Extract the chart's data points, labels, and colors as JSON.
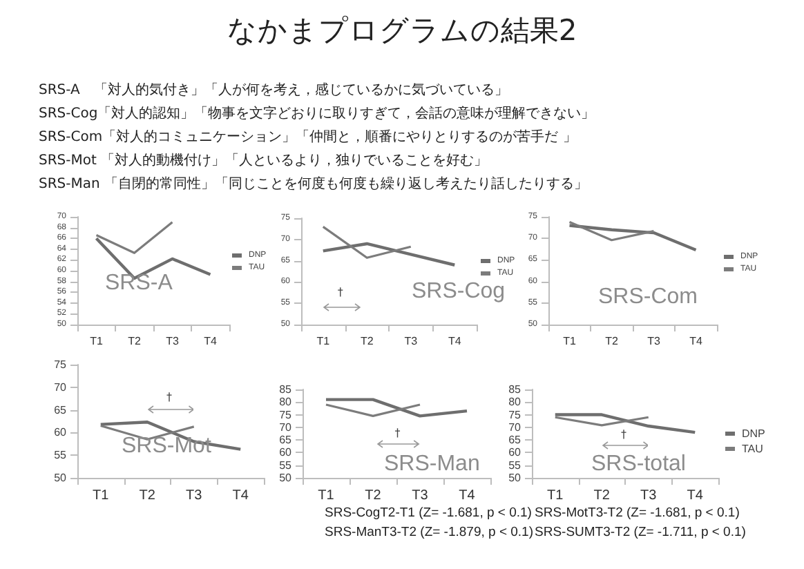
{
  "chart_data": [
    {
      "type": "other",
      "title": "なかまプログラムの結果2",
      "annotations": [
        "SRS-A　「対人的気付き」「人が何を考え，感じているかに気づいている」",
        "SRS-Cog「対人的認知」「物事を文字どおりに取りすぎて，会話の意味が理解できない」",
        "SRS-Com「対人的コミュニケーション」「仲間と，順番にやりとりするのが苦手だ 」",
        "SRS-Mot 「対人的動機付け」「人といるより，独りでいることを好む」",
        "SRS-Man 「自閉的常同性」「同じことを何度も何度も繰り返し考えたり話したりする」"
      ]
    },
    {
      "type": "line",
      "title": "SRS-A",
      "categories": [
        "T1",
        "T2",
        "T3",
        "T4"
      ],
      "ylim": [
        50,
        70
      ],
      "yticks": [
        50,
        52,
        54,
        56,
        58,
        60,
        62,
        64,
        66,
        68,
        70
      ],
      "legend": "right",
      "series": [
        {
          "name": "DNP",
          "color": "#6e6e6e",
          "values": [
            66,
            58.6,
            62.2,
            59.3
          ]
        },
        {
          "name": "TAU",
          "color": "#7c7c7c",
          "values": [
            66.6,
            63.3,
            69,
            null
          ]
        }
      ]
    },
    {
      "type": "line",
      "title": "SRS-Cog",
      "categories": [
        "T1",
        "T2",
        "T3",
        "T4"
      ],
      "ylim": [
        50,
        75
      ],
      "yticks": [
        50,
        55,
        60,
        65,
        70,
        75
      ],
      "legend": "right",
      "annotations": [
        "†"
      ],
      "series": [
        {
          "name": "DNP",
          "color": "#6e6e6e",
          "values": [
            67.3,
            69,
            66.5,
            64
          ]
        },
        {
          "name": "TAU",
          "color": "#7c7c7c",
          "values": [
            73,
            65.7,
            68.3,
            null
          ]
        }
      ]
    },
    {
      "type": "line",
      "title": "SRS-Com",
      "categories": [
        "T1",
        "T2",
        "T3",
        "T4"
      ],
      "ylim": [
        50,
        75
      ],
      "yticks": [
        50,
        55,
        60,
        65,
        70,
        75
      ],
      "legend": "right",
      "series": [
        {
          "name": "DNP",
          "color": "#6e6e6e",
          "values": [
            73,
            72,
            71.3,
            67.3
          ]
        },
        {
          "name": "TAU",
          "color": "#7c7c7c",
          "values": [
            73.8,
            69.6,
            71.7,
            null
          ]
        }
      ]
    },
    {
      "type": "line",
      "title": "SRS-Mot",
      "categories": [
        "T1",
        "T2",
        "T3",
        "T4"
      ],
      "ylim": [
        50,
        75
      ],
      "yticks": [
        50,
        55,
        60,
        65,
        70,
        75
      ],
      "annotations": [
        "†"
      ],
      "series": [
        {
          "color": "#6e6e6e",
          "values": [
            61.8,
            62.3,
            58,
            56.3
          ]
        },
        {
          "color": "#7c7c7c",
          "values": [
            61.5,
            58.5,
            61.3,
            null
          ]
        }
      ]
    },
    {
      "type": "line",
      "title": "SRS-Man",
      "categories": [
        "T1",
        "T2",
        "T3",
        "T4"
      ],
      "ylim": [
        50,
        85
      ],
      "yticks": [
        50,
        55,
        60,
        65,
        70,
        75,
        80,
        85
      ],
      "annotations": [
        "†"
      ],
      "series": [
        {
          "color": "#6e6e6e",
          "values": [
            81,
            81,
            74.5,
            76.5
          ]
        },
        {
          "color": "#7c7c7c",
          "values": [
            79,
            74.5,
            79,
            null
          ]
        }
      ]
    },
    {
      "type": "line",
      "title": "SRS-total",
      "categories": [
        "T1",
        "T2",
        "T3",
        "T4"
      ],
      "ylim": [
        50,
        85
      ],
      "yticks": [
        50,
        55,
        60,
        65,
        70,
        75,
        80,
        85
      ],
      "legend": "right",
      "annotations": [
        "†"
      ],
      "series": [
        {
          "name": "DNP",
          "color": "#6e6e6e",
          "values": [
            75,
            75,
            70.5,
            68
          ]
        },
        {
          "name": "TAU",
          "color": "#7c7c7c",
          "values": [
            74,
            70.8,
            74,
            null
          ]
        }
      ]
    },
    {
      "type": "other",
      "annotations": [
        "SRS-CogT2-T1 (Z= -1.681, p < 0.1)",
        "SRS-MotT3-T2 (Z= -1.681, p < 0.1)",
        "SRS-ManT3-T2 (Z= -1.879, p < 0.1)",
        "SRS-SUMT3-T2 (Z= -1.711, p < 0.1)"
      ]
    }
  ]
}
